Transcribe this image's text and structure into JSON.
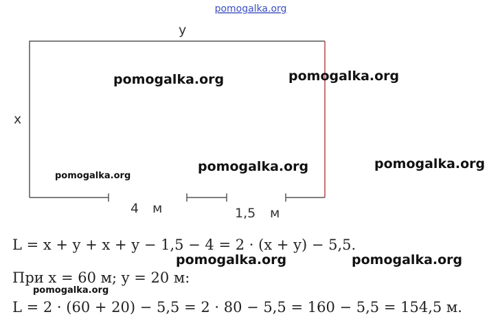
{
  "header": {
    "site": "pomogalka.org"
  },
  "diagram": {
    "top_label": "y",
    "left_label": "x",
    "left_segment": "4",
    "left_unit": "м",
    "right_segment": "1,5",
    "right_unit": "м"
  },
  "solution": {
    "lines": [
      "L = x + y + x + y − 1,5 − 4 = 2 · (x + y) − 5,5.",
      "При x = 60 м;  y = 20 м:",
      "L = 2 · (60 + 20) − 5,5 = 2 · 80 − 5,5 = 160 − 5,5 = 154,5 м."
    ]
  },
  "watermarks": [
    "pomogalka.org",
    "pomogalka.org",
    "pomogalka.org",
    "pomogalka.org",
    "pomogalka.org",
    "pomogalka.org",
    "pomogalka.org",
    "pomogalka.org"
  ]
}
